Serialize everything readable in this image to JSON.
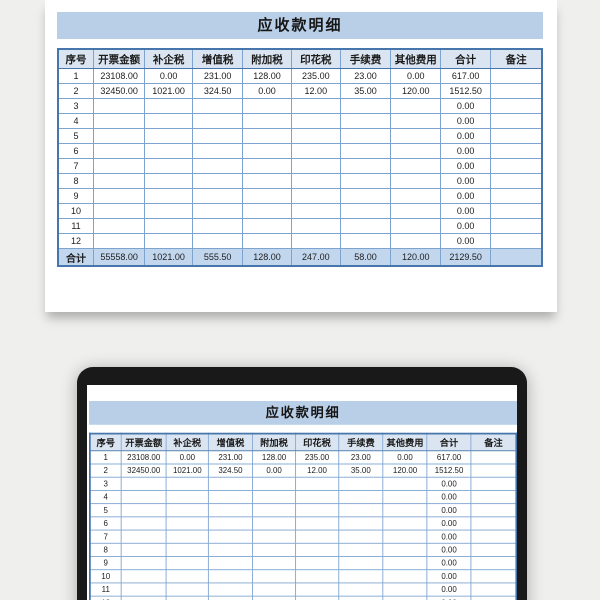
{
  "table": {
    "title": "应收款明细",
    "columns": [
      "序号",
      "开票金额",
      "补企税",
      "增值税",
      "附加税",
      "印花税",
      "手续费",
      "其他费用",
      "合计",
      "备注"
    ],
    "rows": [
      [
        "1",
        "23108.00",
        "0.00",
        "231.00",
        "128.00",
        "235.00",
        "23.00",
        "0.00",
        "617.00",
        ""
      ],
      [
        "2",
        "32450.00",
        "1021.00",
        "324.50",
        "0.00",
        "12.00",
        "35.00",
        "120.00",
        "1512.50",
        ""
      ],
      [
        "3",
        "",
        "",
        "",
        "",
        "",
        "",
        "",
        "0.00",
        ""
      ],
      [
        "4",
        "",
        "",
        "",
        "",
        "",
        "",
        "",
        "0.00",
        ""
      ],
      [
        "5",
        "",
        "",
        "",
        "",
        "",
        "",
        "",
        "0.00",
        ""
      ],
      [
        "6",
        "",
        "",
        "",
        "",
        "",
        "",
        "",
        "0.00",
        ""
      ],
      [
        "7",
        "",
        "",
        "",
        "",
        "",
        "",
        "",
        "0.00",
        ""
      ],
      [
        "8",
        "",
        "",
        "",
        "",
        "",
        "",
        "",
        "0.00",
        ""
      ],
      [
        "9",
        "",
        "",
        "",
        "",
        "",
        "",
        "",
        "0.00",
        ""
      ],
      [
        "10",
        "",
        "",
        "",
        "",
        "",
        "",
        "",
        "0.00",
        ""
      ],
      [
        "11",
        "",
        "",
        "",
        "",
        "",
        "",
        "",
        "0.00",
        ""
      ],
      [
        "12",
        "",
        "",
        "",
        "",
        "",
        "",
        "",
        "0.00",
        ""
      ]
    ],
    "total_row": [
      "合计",
      "55558.00",
      "1021.00",
      "555.50",
      "128.00",
      "247.00",
      "58.00",
      "120.00",
      "2129.50",
      ""
    ]
  },
  "colors": {
    "title_bar_bg": "#b9cfe8",
    "header_bg": "#dbe5f1",
    "total_row_bg": "#c2d7ee",
    "grid_border_outer": "#4676ac",
    "grid_border_inner": "#7da3cf",
    "laptop_frame": "#191919",
    "page_bg": "#efefee"
  }
}
